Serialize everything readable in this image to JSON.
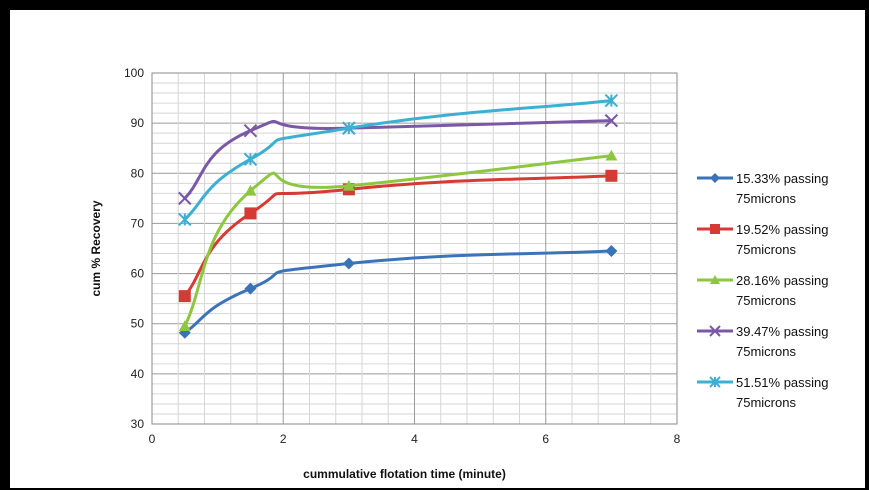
{
  "chart_data": {
    "type": "line",
    "title": "",
    "xlabel": "cummulative  flotation time (minute)",
    "ylabel": "cum % Recovery",
    "xlim": [
      0,
      8
    ],
    "ylim": [
      30,
      100
    ],
    "x_ticks": [
      "0",
      "2",
      "4",
      "6",
      "8"
    ],
    "y_ticks": [
      "30",
      "40",
      "50",
      "60",
      "70",
      "80",
      "90",
      "100"
    ],
    "grid": true,
    "legend_position": "right",
    "series": [
      {
        "name_line1": "15.33% passing",
        "name_line2": "75microns",
        "color": "#3B73B9",
        "marker": "diamond",
        "x": [
          0.5,
          1.5,
          3,
          7
        ],
        "y": [
          48.2,
          57,
          62,
          64.5
        ]
      },
      {
        "name_line1": "19.52% passing",
        "name_line2": "75microns",
        "color": "#D63A34",
        "marker": "square",
        "x": [
          0.5,
          1.5,
          3,
          7
        ],
        "y": [
          55.5,
          72,
          76.8,
          79.5
        ]
      },
      {
        "name_line1": "28.16% passing",
        "name_line2": "75microns",
        "color": "#8DC63F",
        "marker": "triangle",
        "x": [
          0.5,
          1.5,
          3,
          7
        ],
        "y": [
          49.5,
          76.5,
          77.5,
          83.5
        ]
      },
      {
        "name_line1": "39.47% passing",
        "name_line2": "75microns",
        "color": "#7B58A6",
        "marker": "x",
        "x": [
          0.5,
          1.5,
          3,
          7
        ],
        "y": [
          75,
          88.5,
          89,
          90.5
        ]
      },
      {
        "name_line1": "51.51% passing",
        "name_line2": "75microns",
        "color": "#3DAFD3",
        "marker": "asterisk",
        "x": [
          0.5,
          1.5,
          3,
          7
        ],
        "y": [
          70.8,
          82.8,
          89,
          94.5
        ]
      }
    ]
  }
}
